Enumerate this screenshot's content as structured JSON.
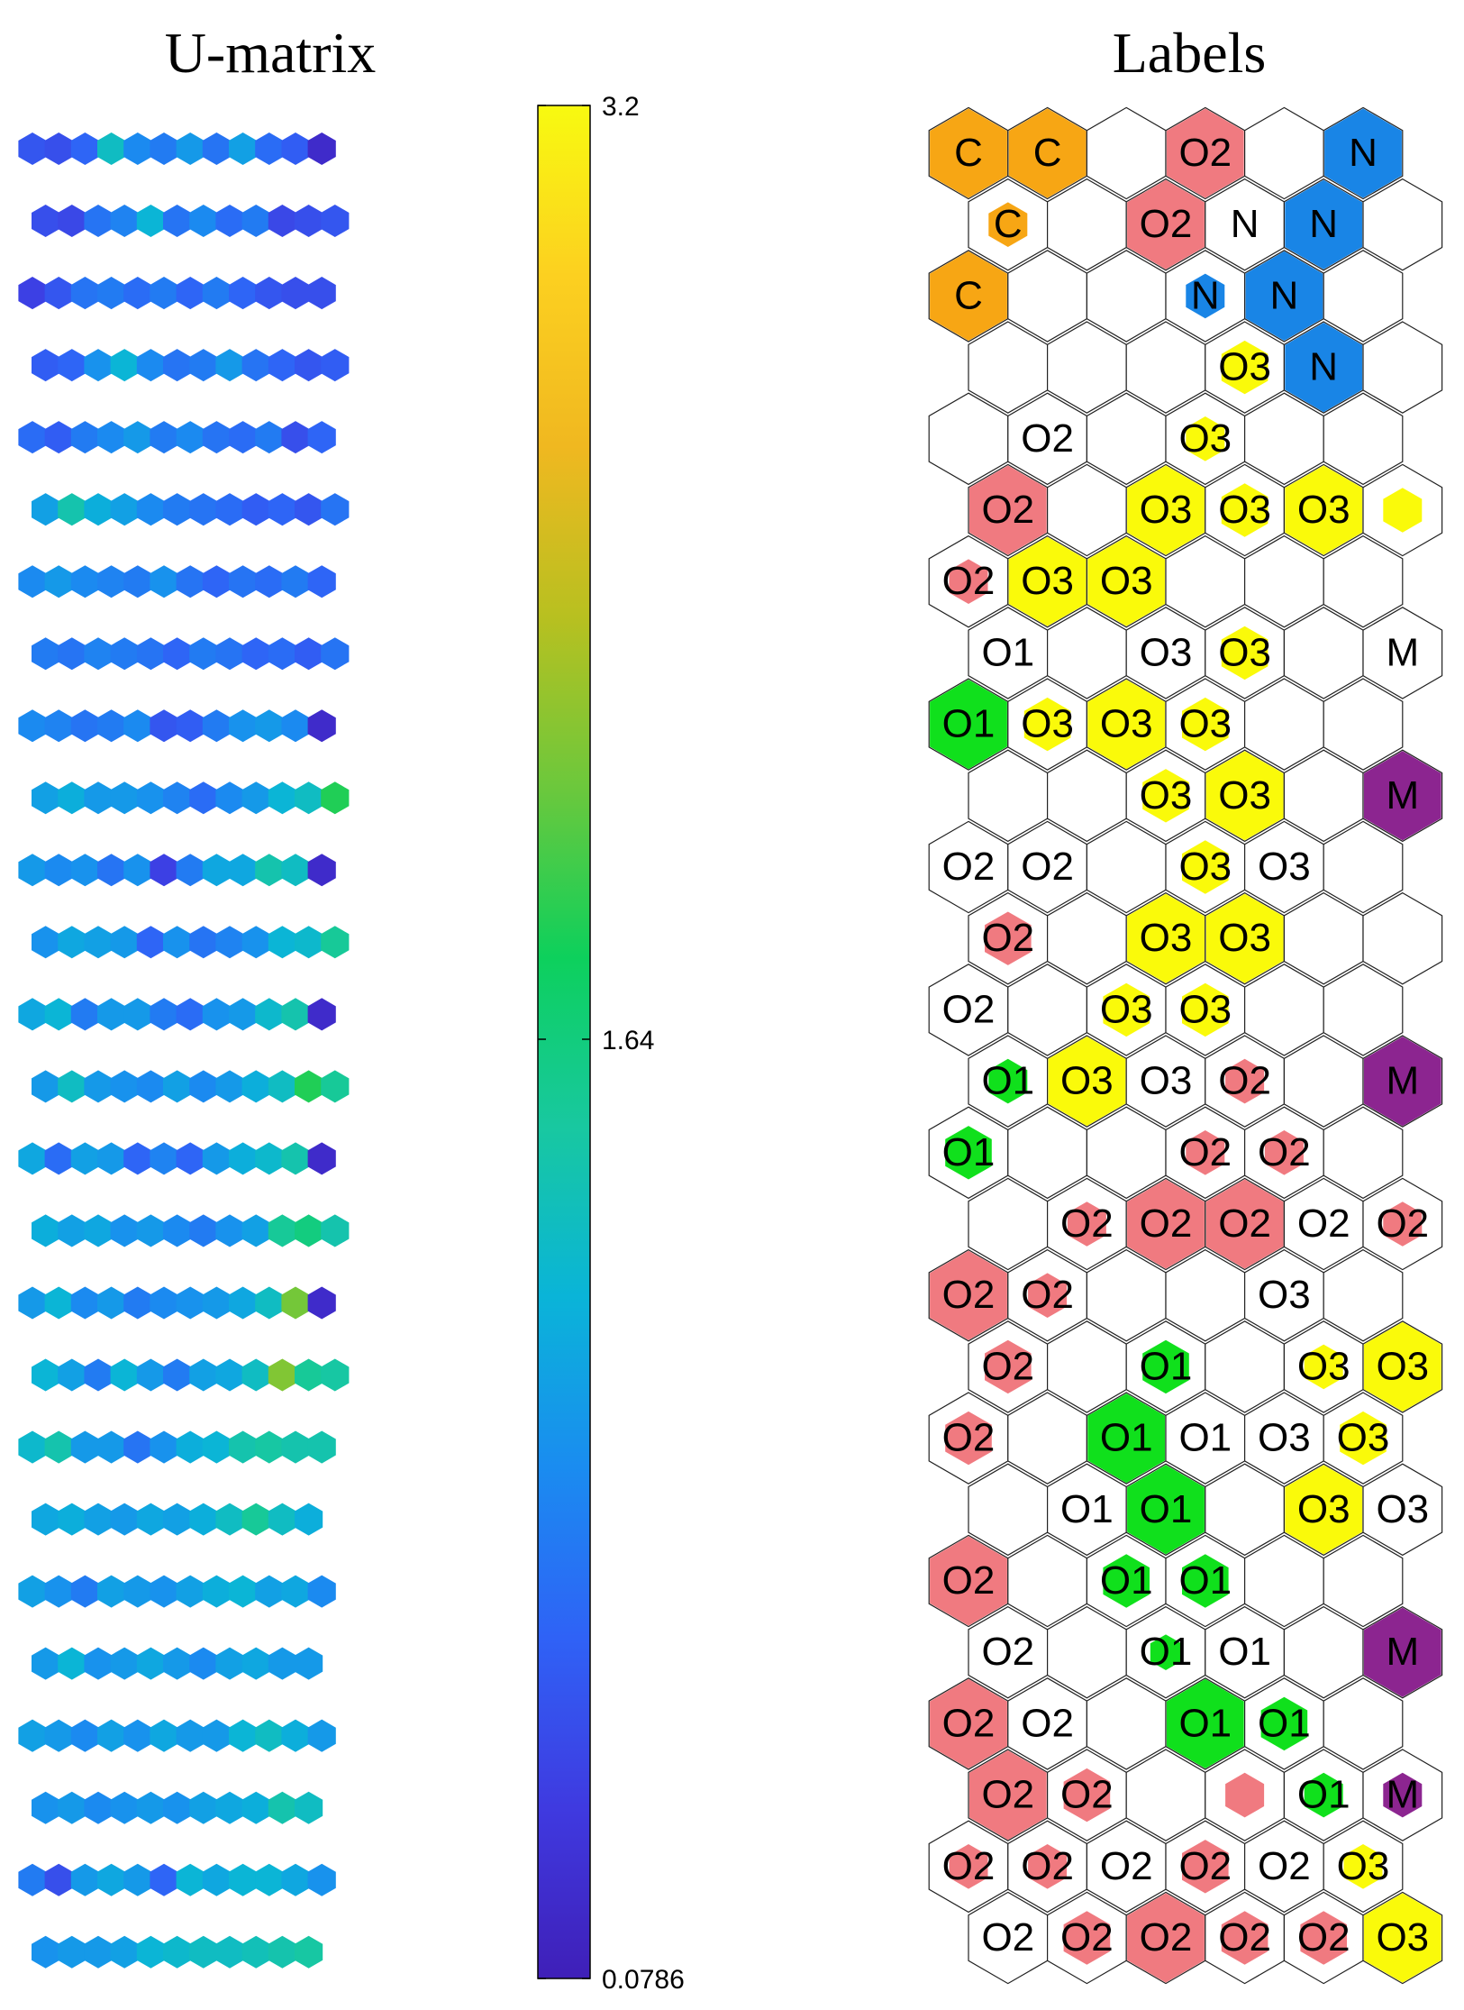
{
  "titles": {
    "umatrix": "U-matrix",
    "labels": "Labels"
  },
  "colorbar": {
    "max": 3.2,
    "mid": 1.64,
    "min": 0.0786,
    "max_label": "3.2",
    "mid_label": "1.64",
    "min_label": "0.0786",
    "colormap": [
      "#3f1fb8",
      "#3f3ae0",
      "#2f62f6",
      "#1a8cf0",
      "#0ab4d8",
      "#18c8a0",
      "#0dd05c",
      "#6cc83c",
      "#b8c020",
      "#f0b820",
      "#fcd020",
      "#f8fa10"
    ]
  },
  "chart_data": {
    "type": "heatmap",
    "grid": {
      "rows": 26,
      "cols": 12
    },
    "umatrix_values": [
      [
        0.35,
        0.3,
        0.45,
        1.1,
        0.7,
        0.6,
        0.8,
        0.55,
        0.85,
        0.5,
        0.4,
        0.0
      ],
      [
        0.3,
        0.25,
        0.55,
        0.65,
        1.0,
        0.55,
        0.7,
        0.5,
        0.6,
        0.25,
        0.3,
        0.35
      ],
      [
        0.2,
        0.35,
        0.55,
        0.6,
        0.5,
        0.6,
        0.45,
        0.6,
        0.45,
        0.35,
        0.3,
        0.3
      ],
      [
        0.4,
        0.45,
        0.75,
        1.0,
        0.7,
        0.55,
        0.6,
        0.8,
        0.55,
        0.45,
        0.35,
        0.4
      ],
      [
        0.5,
        0.4,
        0.6,
        0.7,
        0.8,
        0.6,
        0.7,
        0.55,
        0.5,
        0.6,
        0.3,
        0.45
      ],
      [
        0.85,
        1.2,
        0.95,
        0.85,
        0.7,
        0.6,
        0.55,
        0.5,
        0.4,
        0.45,
        0.35,
        0.55
      ],
      [
        0.7,
        0.8,
        0.7,
        0.65,
        0.6,
        0.75,
        0.55,
        0.45,
        0.55,
        0.5,
        0.6,
        0.45
      ],
      [
        0.6,
        0.55,
        0.65,
        0.6,
        0.55,
        0.45,
        0.6,
        0.55,
        0.45,
        0.5,
        0.4,
        0.55
      ],
      [
        0.7,
        0.65,
        0.55,
        0.6,
        0.7,
        0.35,
        0.4,
        0.6,
        0.75,
        0.8,
        0.7,
        0.0
      ],
      [
        0.85,
        0.95,
        0.8,
        0.8,
        0.75,
        0.65,
        0.5,
        0.7,
        0.8,
        1.0,
        1.1,
        1.6
      ],
      [
        0.8,
        0.7,
        0.75,
        0.55,
        0.75,
        0.2,
        0.6,
        0.9,
        0.9,
        1.2,
        1.1,
        0.0
      ],
      [
        0.75,
        0.9,
        0.85,
        0.8,
        0.45,
        0.75,
        0.55,
        0.65,
        0.75,
        1.0,
        1.05,
        1.3
      ],
      [
        0.9,
        1.0,
        0.6,
        0.8,
        0.8,
        0.6,
        0.5,
        0.75,
        0.8,
        1.05,
        1.2,
        0.0
      ],
      [
        0.8,
        1.1,
        0.8,
        0.75,
        0.7,
        0.85,
        0.7,
        0.8,
        0.95,
        1.1,
        1.6,
        1.3
      ],
      [
        0.9,
        0.5,
        0.85,
        0.8,
        0.45,
        0.65,
        0.45,
        0.8,
        0.95,
        1.05,
        1.2,
        0.0
      ],
      [
        0.95,
        0.85,
        0.9,
        0.75,
        0.8,
        0.7,
        0.6,
        0.75,
        0.85,
        1.3,
        1.4,
        1.2
      ],
      [
        0.8,
        1.0,
        0.7,
        0.8,
        0.6,
        0.7,
        0.75,
        0.8,
        0.9,
        1.1,
        1.85,
        0.0
      ],
      [
        1.0,
        0.85,
        0.6,
        1.0,
        0.8,
        0.6,
        0.85,
        0.9,
        1.1,
        1.9,
        1.3,
        1.25
      ],
      [
        1.05,
        1.2,
        0.8,
        0.8,
        0.55,
        0.75,
        0.95,
        1.0,
        1.2,
        1.25,
        1.2,
        1.2
      ],
      [
        0.9,
        0.95,
        0.85,
        0.8,
        0.9,
        0.85,
        0.95,
        1.1,
        1.3,
        1.1,
        0.95,
        0.0
      ],
      [
        0.85,
        0.75,
        0.6,
        0.85,
        0.8,
        0.75,
        0.85,
        0.95,
        1.0,
        0.85,
        0.9,
        0.7
      ],
      [
        0.8,
        1.0,
        0.75,
        0.8,
        0.9,
        0.8,
        0.7,
        0.85,
        0.9,
        0.8,
        0.8,
        0.0
      ],
      [
        0.85,
        0.8,
        0.7,
        0.85,
        0.75,
        0.9,
        0.8,
        0.8,
        1.0,
        1.1,
        0.95,
        0.8
      ],
      [
        0.75,
        0.8,
        0.7,
        0.75,
        0.8,
        0.75,
        0.85,
        0.9,
        0.95,
        1.2,
        1.1,
        0.0
      ],
      [
        0.6,
        0.3,
        0.8,
        0.9,
        0.8,
        0.45,
        1.0,
        0.9,
        1.0,
        1.0,
        0.9,
        0.75
      ],
      [
        0.75,
        0.8,
        0.8,
        0.85,
        1.0,
        1.05,
        1.1,
        1.1,
        1.15,
        1.2,
        1.25,
        0.0
      ]
    ],
    "label_legend": {
      "C": "#f7a614",
      "N": "#1985e6",
      "O1": "#10e01c",
      "O2": "#f07a80",
      "O3": "#fafa0a",
      "M": "#8c2590"
    },
    "labels": [
      [
        [
          "C",
          1,
          1
        ],
        [
          "C",
          2,
          1
        ],
        null,
        [
          "O2",
          2,
          1
        ],
        null,
        [
          "N",
          1,
          1
        ]
      ],
      [
        [
          "C",
          1,
          0.5
        ],
        null,
        [
          "O2",
          2,
          1
        ],
        [
          "N",
          1,
          0
        ],
        [
          "N",
          1,
          1
        ],
        null
      ],
      [
        [
          "C",
          1,
          1
        ],
        null,
        null,
        [
          "N",
          3,
          0.5
        ],
        [
          "N",
          1,
          1
        ],
        null
      ],
      [
        null,
        null,
        null,
        [
          "O3",
          1,
          0.6
        ],
        [
          "N",
          1,
          1
        ],
        null
      ],
      [
        null,
        [
          "O2",
          0,
          0
        ],
        null,
        [
          "O3",
          2,
          0.5
        ],
        null,
        null
      ],
      [
        [
          "O2",
          2,
          1
        ],
        null,
        [
          "O3",
          2,
          1
        ],
        [
          "O3",
          2,
          0.6
        ],
        [
          "O3",
          2,
          1
        ],
        [
          "",
          0,
          0.5
        ]
      ],
      [
        [
          "O2",
          2,
          0.5
        ],
        [
          "O3",
          2,
          1
        ],
        [
          "O3",
          2,
          1
        ],
        null,
        null,
        null
      ],
      [
        [
          "O1",
          0,
          0
        ],
        null,
        [
          "O3",
          0,
          0
        ],
        [
          "O3",
          2,
          0.6
        ],
        null,
        [
          "M",
          0,
          0
        ]
      ],
      [
        [
          "O1",
          3,
          1
        ],
        [
          "O3",
          2,
          0.6
        ],
        [
          "O3",
          2,
          1
        ],
        [
          "O3",
          2,
          0.6
        ],
        null,
        null
      ],
      [
        null,
        null,
        [
          "O3",
          2,
          0.6
        ],
        [
          "O3",
          2,
          1
        ],
        null,
        [
          "M",
          1,
          1
        ]
      ],
      [
        [
          "O2",
          0,
          0
        ],
        [
          "O2",
          0,
          0
        ],
        null,
        [
          "O3",
          2,
          0.6
        ],
        [
          "O3",
          0,
          0
        ],
        null
      ],
      [
        [
          "O2",
          2,
          0.6
        ],
        null,
        [
          "O3",
          2,
          1
        ],
        [
          "O3",
          2,
          1
        ],
        null,
        null
      ],
      [
        [
          "O2",
          0,
          0
        ],
        null,
        [
          "O3",
          2,
          0.6
        ],
        [
          "O3",
          2,
          0.6
        ],
        null,
        null
      ],
      [
        [
          "O1",
          2,
          0.5
        ],
        [
          "O3",
          2,
          1
        ],
        [
          "O3",
          0,
          0
        ],
        [
          "O2",
          2,
          0.5
        ],
        null,
        [
          "M",
          1,
          1
        ]
      ],
      [
        [
          "O1",
          3,
          0.6
        ],
        null,
        null,
        [
          "O2",
          2,
          0.5
        ],
        [
          "O2",
          2,
          0.5
        ],
        null
      ],
      [
        null,
        [
          "O2",
          2,
          0.5
        ],
        [
          "O2",
          2,
          1
        ],
        [
          "O2",
          2,
          1
        ],
        [
          "O2",
          0,
          0
        ],
        [
          "O2",
          2,
          0.5
        ]
      ],
      [
        [
          "O2",
          2,
          1
        ],
        [
          "O2",
          2,
          0.5
        ],
        null,
        null,
        [
          "O3",
          0,
          0
        ],
        null
      ],
      [
        [
          "O2",
          2,
          0.6
        ],
        null,
        [
          "O1",
          3,
          0.6
        ],
        null,
        [
          "O3",
          2,
          0.5
        ],
        [
          "O3",
          2,
          1
        ]
      ],
      [
        [
          "O2",
          2,
          0.6
        ],
        null,
        [
          "O1",
          3,
          1
        ],
        [
          "O1",
          0,
          0
        ],
        [
          "O3",
          0,
          0
        ],
        [
          "O3",
          2,
          0.6
        ]
      ],
      [
        null,
        [
          "O1",
          0,
          0
        ],
        [
          "O1",
          3,
          1
        ],
        null,
        [
          "O3",
          2,
          1
        ],
        [
          "O3",
          0,
          0
        ]
      ],
      [
        [
          "O2",
          2,
          1
        ],
        null,
        [
          "O1",
          3,
          0.6
        ],
        [
          "O1",
          3,
          0.6
        ],
        null,
        null
      ],
      [
        [
          "O2",
          0,
          0
        ],
        null,
        [
          "O1",
          3,
          0.4
        ],
        [
          "O1",
          0,
          0
        ],
        null,
        [
          "M",
          1,
          1
        ]
      ],
      [
        [
          "O2",
          2,
          1
        ],
        [
          "O2",
          0,
          0
        ],
        null,
        [
          "O1",
          3,
          1
        ],
        [
          "O1",
          3,
          0.6
        ],
        null
      ],
      [
        [
          "O2",
          2,
          1
        ],
        [
          "O2",
          2,
          0.6
        ],
        null,
        [
          "",
          2,
          0.5
        ],
        [
          "O1",
          2,
          0.5
        ],
        [
          "M",
          1,
          0.5
        ]
      ],
      [
        [
          "O2",
          2,
          0.5
        ],
        [
          "O2",
          2,
          0.5
        ],
        [
          "O2",
          0,
          0
        ],
        [
          "O2",
          2,
          0.6
        ],
        [
          "O2",
          0,
          0
        ],
        [
          "O3",
          2,
          0.5
        ]
      ],
      [
        [
          "O2",
          0,
          0
        ],
        [
          "O2",
          2,
          0.6
        ],
        [
          "O2",
          2,
          1
        ],
        [
          "O2",
          2,
          0.6
        ],
        [
          "O2",
          2,
          0.6
        ],
        [
          "O3",
          2,
          1
        ]
      ]
    ]
  }
}
